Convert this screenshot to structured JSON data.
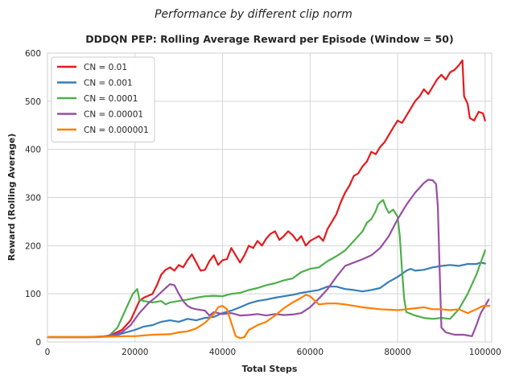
{
  "chart_data": {
    "type": "line",
    "suptitle": "Performance by different clip norm",
    "title": "DDDQN PEP: Rolling Average Reward per Episode (Window = 50)",
    "xlabel": "Total Steps",
    "ylabel": "Reward (Rolling Average)",
    "xlim": [
      0,
      101500
    ],
    "ylim": [
      0,
      600
    ],
    "xticks": [
      0,
      20000,
      40000,
      60000,
      80000,
      100000
    ],
    "yticks": [
      0,
      100,
      200,
      300,
      400,
      500,
      600
    ],
    "grid": true,
    "legend_position": "top-left",
    "series": [
      {
        "name": "CN = 0.01",
        "color": "#e41a1c",
        "points": [
          [
            0,
            10
          ],
          [
            9000,
            10
          ],
          [
            14000,
            12
          ],
          [
            17000,
            25
          ],
          [
            19000,
            45
          ],
          [
            20000,
            65
          ],
          [
            21000,
            85
          ],
          [
            22000,
            92
          ],
          [
            24000,
            100
          ],
          [
            25000,
            118
          ],
          [
            26000,
            140
          ],
          [
            27000,
            150
          ],
          [
            28000,
            155
          ],
          [
            29000,
            148
          ],
          [
            30000,
            160
          ],
          [
            31000,
            155
          ],
          [
            32000,
            170
          ],
          [
            33000,
            182
          ],
          [
            34000,
            165
          ],
          [
            35000,
            148
          ],
          [
            36000,
            150
          ],
          [
            37000,
            168
          ],
          [
            38000,
            180
          ],
          [
            39000,
            160
          ],
          [
            40000,
            170
          ],
          [
            41000,
            172
          ],
          [
            42000,
            195
          ],
          [
            43000,
            180
          ],
          [
            44000,
            165
          ],
          [
            45000,
            180
          ],
          [
            46000,
            200
          ],
          [
            47000,
            195
          ],
          [
            48000,
            210
          ],
          [
            49000,
            200
          ],
          [
            50000,
            215
          ],
          [
            51000,
            225
          ],
          [
            52000,
            230
          ],
          [
            53000,
            212
          ],
          [
            54000,
            220
          ],
          [
            55000,
            230
          ],
          [
            56000,
            222
          ],
          [
            57000,
            210
          ],
          [
            58000,
            220
          ],
          [
            59000,
            200
          ],
          [
            60000,
            210
          ],
          [
            61000,
            215
          ],
          [
            62000,
            220
          ],
          [
            63000,
            210
          ],
          [
            64000,
            235
          ],
          [
            65000,
            250
          ],
          [
            66000,
            265
          ],
          [
            67000,
            290
          ],
          [
            68000,
            310
          ],
          [
            69000,
            325
          ],
          [
            70000,
            345
          ],
          [
            71000,
            350
          ],
          [
            72000,
            365
          ],
          [
            73000,
            375
          ],
          [
            74000,
            395
          ],
          [
            75000,
            390
          ],
          [
            76000,
            405
          ],
          [
            77000,
            415
          ],
          [
            78000,
            430
          ],
          [
            79000,
            445
          ],
          [
            80000,
            460
          ],
          [
            81000,
            455
          ],
          [
            82000,
            470
          ],
          [
            83000,
            485
          ],
          [
            84000,
            500
          ],
          [
            85000,
            510
          ],
          [
            86000,
            525
          ],
          [
            87000,
            515
          ],
          [
            88000,
            530
          ],
          [
            89000,
            545
          ],
          [
            90000,
            555
          ],
          [
            91000,
            545
          ],
          [
            92000,
            560
          ],
          [
            93000,
            565
          ],
          [
            94000,
            575
          ],
          [
            94800,
            585
          ],
          [
            95200,
            510
          ],
          [
            96000,
            495
          ],
          [
            96500,
            465
          ],
          [
            97500,
            460
          ],
          [
            98500,
            478
          ],
          [
            99500,
            475
          ],
          [
            100000,
            460
          ]
        ]
      },
      {
        "name": "CN = 0.001",
        "color": "#377eb8",
        "points": [
          [
            0,
            10
          ],
          [
            10000,
            10
          ],
          [
            15000,
            12
          ],
          [
            18000,
            20
          ],
          [
            20000,
            25
          ],
          [
            22000,
            32
          ],
          [
            24000,
            35
          ],
          [
            26000,
            42
          ],
          [
            28000,
            45
          ],
          [
            30000,
            42
          ],
          [
            32000,
            48
          ],
          [
            34000,
            45
          ],
          [
            36000,
            50
          ],
          [
            38000,
            52
          ],
          [
            40000,
            60
          ],
          [
            42000,
            65
          ],
          [
            44000,
            72
          ],
          [
            46000,
            80
          ],
          [
            48000,
            85
          ],
          [
            50000,
            88
          ],
          [
            52000,
            92
          ],
          [
            54000,
            95
          ],
          [
            56000,
            98
          ],
          [
            58000,
            102
          ],
          [
            60000,
            105
          ],
          [
            62000,
            108
          ],
          [
            64000,
            115
          ],
          [
            66000,
            115
          ],
          [
            68000,
            110
          ],
          [
            70000,
            108
          ],
          [
            72000,
            105
          ],
          [
            74000,
            108
          ],
          [
            76000,
            112
          ],
          [
            78000,
            125
          ],
          [
            80000,
            135
          ],
          [
            82000,
            148
          ],
          [
            83000,
            152
          ],
          [
            84000,
            148
          ],
          [
            86000,
            150
          ],
          [
            88000,
            155
          ],
          [
            90000,
            158
          ],
          [
            92000,
            160
          ],
          [
            94000,
            158
          ],
          [
            96000,
            162
          ],
          [
            98000,
            162
          ],
          [
            99000,
            165
          ],
          [
            100000,
            163
          ]
        ]
      },
      {
        "name": "CN = 0.0001",
        "color": "#4daf4a",
        "points": [
          [
            0,
            10
          ],
          [
            10000,
            10
          ],
          [
            14000,
            12
          ],
          [
            16000,
            30
          ],
          [
            18000,
            70
          ],
          [
            19500,
            100
          ],
          [
            20500,
            110
          ],
          [
            21000,
            88
          ],
          [
            22000,
            85
          ],
          [
            24000,
            82
          ],
          [
            26000,
            85
          ],
          [
            27000,
            78
          ],
          [
            28000,
            82
          ],
          [
            30000,
            85
          ],
          [
            32000,
            88
          ],
          [
            34000,
            92
          ],
          [
            36000,
            95
          ],
          [
            38000,
            96
          ],
          [
            40000,
            95
          ],
          [
            42000,
            100
          ],
          [
            44000,
            102
          ],
          [
            46000,
            108
          ],
          [
            48000,
            112
          ],
          [
            50000,
            118
          ],
          [
            52000,
            122
          ],
          [
            54000,
            128
          ],
          [
            56000,
            132
          ],
          [
            58000,
            145
          ],
          [
            60000,
            152
          ],
          [
            62000,
            155
          ],
          [
            64000,
            168
          ],
          [
            66000,
            178
          ],
          [
            68000,
            190
          ],
          [
            70000,
            210
          ],
          [
            72000,
            230
          ],
          [
            73000,
            248
          ],
          [
            74000,
            255
          ],
          [
            75000,
            272
          ],
          [
            75500,
            285
          ],
          [
            76000,
            290
          ],
          [
            76700,
            295
          ],
          [
            77300,
            280
          ],
          [
            78000,
            268
          ],
          [
            79000,
            275
          ],
          [
            80000,
            260
          ],
          [
            80500,
            220
          ],
          [
            81000,
            150
          ],
          [
            81500,
            90
          ],
          [
            82000,
            62
          ],
          [
            84000,
            55
          ],
          [
            86000,
            50
          ],
          [
            88000,
            48
          ],
          [
            90000,
            50
          ],
          [
            92000,
            48
          ],
          [
            94000,
            68
          ],
          [
            96000,
            100
          ],
          [
            98000,
            140
          ],
          [
            100000,
            190
          ]
        ]
      },
      {
        "name": "CN = 0.00001",
        "color": "#984ea3",
        "points": [
          [
            0,
            10
          ],
          [
            12000,
            10
          ],
          [
            15000,
            15
          ],
          [
            17000,
            20
          ],
          [
            19000,
            35
          ],
          [
            21000,
            60
          ],
          [
            23000,
            80
          ],
          [
            25000,
            95
          ],
          [
            27000,
            112
          ],
          [
            28000,
            120
          ],
          [
            29000,
            118
          ],
          [
            30000,
            100
          ],
          [
            31000,
            85
          ],
          [
            32000,
            75
          ],
          [
            33000,
            70
          ],
          [
            34000,
            68
          ],
          [
            36000,
            65
          ],
          [
            37000,
            55
          ],
          [
            38000,
            62
          ],
          [
            40000,
            58
          ],
          [
            42000,
            60
          ],
          [
            44000,
            55
          ],
          [
            46000,
            56
          ],
          [
            48000,
            58
          ],
          [
            50000,
            55
          ],
          [
            52000,
            58
          ],
          [
            54000,
            56
          ],
          [
            56000,
            57
          ],
          [
            58000,
            60
          ],
          [
            60000,
            72
          ],
          [
            62000,
            90
          ],
          [
            64000,
            110
          ],
          [
            66000,
            135
          ],
          [
            68000,
            158
          ],
          [
            70000,
            165
          ],
          [
            72000,
            172
          ],
          [
            74000,
            180
          ],
          [
            76000,
            195
          ],
          [
            78000,
            220
          ],
          [
            80000,
            255
          ],
          [
            82000,
            285
          ],
          [
            84000,
            310
          ],
          [
            86000,
            330
          ],
          [
            87000,
            337
          ],
          [
            88000,
            336
          ],
          [
            88800,
            328
          ],
          [
            89200,
            280
          ],
          [
            89600,
            150
          ],
          [
            90000,
            30
          ],
          [
            91000,
            20
          ],
          [
            93000,
            15
          ],
          [
            95000,
            15
          ],
          [
            97000,
            12
          ],
          [
            98000,
            35
          ],
          [
            99000,
            60
          ],
          [
            100000,
            75
          ],
          [
            100800,
            88
          ]
        ]
      },
      {
        "name": "CN = 0.000001",
        "color": "#ff7f00",
        "points": [
          [
            0,
            10
          ],
          [
            10000,
            10
          ],
          [
            18000,
            12
          ],
          [
            20000,
            12
          ],
          [
            24000,
            15
          ],
          [
            28000,
            16
          ],
          [
            30000,
            20
          ],
          [
            32000,
            22
          ],
          [
            34000,
            28
          ],
          [
            36000,
            40
          ],
          [
            38000,
            58
          ],
          [
            39000,
            72
          ],
          [
            40000,
            75
          ],
          [
            41000,
            68
          ],
          [
            42000,
            40
          ],
          [
            43000,
            12
          ],
          [
            44000,
            8
          ],
          [
            45000,
            10
          ],
          [
            46000,
            25
          ],
          [
            47000,
            30
          ],
          [
            48000,
            35
          ],
          [
            50000,
            42
          ],
          [
            52000,
            55
          ],
          [
            54000,
            70
          ],
          [
            56000,
            82
          ],
          [
            58000,
            92
          ],
          [
            59000,
            98
          ],
          [
            60000,
            95
          ],
          [
            62000,
            78
          ],
          [
            64000,
            80
          ],
          [
            66000,
            80
          ],
          [
            68000,
            78
          ],
          [
            70000,
            75
          ],
          [
            72000,
            72
          ],
          [
            74000,
            70
          ],
          [
            76000,
            68
          ],
          [
            78000,
            67
          ],
          [
            80000,
            66
          ],
          [
            82000,
            68
          ],
          [
            84000,
            70
          ],
          [
            86000,
            72
          ],
          [
            88000,
            68
          ],
          [
            90000,
            68
          ],
          [
            92000,
            66
          ],
          [
            94000,
            68
          ],
          [
            96000,
            60
          ],
          [
            98000,
            68
          ],
          [
            99500,
            75
          ],
          [
            101000,
            75
          ]
        ]
      }
    ]
  }
}
